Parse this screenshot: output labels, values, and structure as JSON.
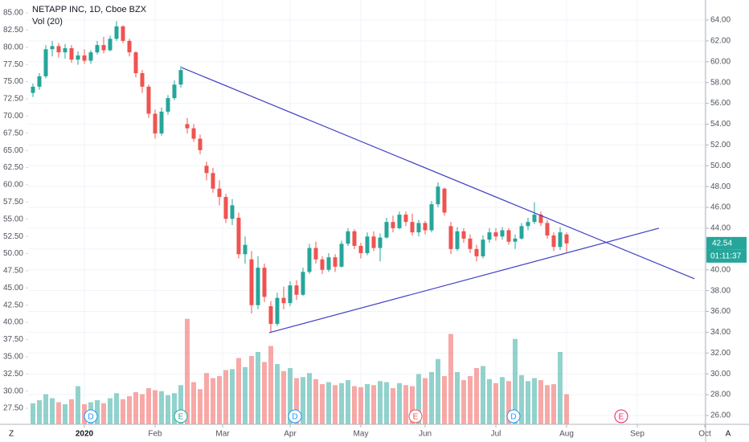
{
  "chart_data": {
    "type": "candlestick",
    "title": "NETAPP INC, 1D, Cboe BZX",
    "subtitle": "Vol (20)",
    "up_color": "#26a69a",
    "down_color": "#ef5350",
    "x": [
      -16,
      -14,
      -12,
      -10,
      -8,
      -6,
      -4,
      -2,
      0,
      2,
      4,
      6,
      8,
      10,
      12,
      14,
      16,
      18,
      20,
      22,
      24,
      26,
      28,
      30,
      32,
      34,
      36,
      38,
      40,
      42,
      44,
      46,
      48,
      50,
      52,
      54,
      56,
      58,
      60,
      62,
      64,
      66,
      68,
      70,
      72,
      74,
      76,
      78,
      80,
      82,
      84,
      86,
      88,
      90,
      92,
      94,
      96,
      98,
      100,
      102,
      104,
      106,
      108,
      110,
      112,
      114,
      116,
      118,
      120,
      122,
      124,
      126,
      128,
      130,
      132,
      134,
      136,
      138,
      140,
      142,
      144,
      146,
      148,
      150
    ],
    "open": [
      57.0,
      57.6,
      58.6,
      61.2,
      61.5,
      60.9,
      61.3,
      60.2,
      60.6,
      60.1,
      60.9,
      61.6,
      61.1,
      62.2,
      63.4,
      62.0,
      60.9,
      58.9,
      57.6,
      55.0,
      53.1,
      55.2,
      56.5,
      57.8,
      54.0,
      53.6,
      52.6,
      50.0,
      49.3,
      47.8,
      47.0,
      44.9,
      45.0,
      41.5,
      41.0,
      36.6,
      40.2,
      36.5,
      34.8,
      37.3,
      36.8,
      38.5,
      37.6,
      39.8,
      42.1,
      41.0,
      40.0,
      41.2,
      40.3,
      42.5,
      43.7,
      42.3,
      41.6,
      43.2,
      42.1,
      43.1,
      44.6,
      44.0,
      45.3,
      44.6,
      43.6,
      44.5,
      43.8,
      46.3,
      47.8,
      44.2,
      42.0,
      43.7,
      43.0,
      42.0,
      41.3,
      42.9,
      43.6,
      43.2,
      43.8,
      42.7,
      43.0,
      44.2,
      44.6,
      45.3,
      44.5,
      43.3,
      42.2,
      43.4
    ],
    "high": [
      57.9,
      58.9,
      61.6,
      62.0,
      61.8,
      61.7,
      61.6,
      61.0,
      61.2,
      61.1,
      62.0,
      62.4,
      62.5,
      63.9,
      63.5,
      62.2,
      61.0,
      59.2,
      57.8,
      55.4,
      55.6,
      56.8,
      58.2,
      59.6,
      54.6,
      54.0,
      53.0,
      50.4,
      49.8,
      48.6,
      47.3,
      46.8,
      45.5,
      43.2,
      41.8,
      41.3,
      40.6,
      37.0,
      37.8,
      38.4,
      38.9,
      39.0,
      40.2,
      42.5,
      42.7,
      41.3,
      41.6,
      41.5,
      42.8,
      44.0,
      43.9,
      42.6,
      43.6,
      43.7,
      43.5,
      45.0,
      45.2,
      45.6,
      45.6,
      45.4,
      44.8,
      44.7,
      46.6,
      48.4,
      47.9,
      44.6,
      44.1,
      44.0,
      43.4,
      42.4,
      43.3,
      44.0,
      44.0,
      44.1,
      44.0,
      43.4,
      44.5,
      45.0,
      46.5,
      45.6,
      44.8,
      43.6,
      44.1,
      43.6
    ],
    "low": [
      56.6,
      57.3,
      58.4,
      60.5,
      60.4,
      60.3,
      59.9,
      59.7,
      59.8,
      59.8,
      60.7,
      60.8,
      61.0,
      62.0,
      61.8,
      60.5,
      58.5,
      57.0,
      54.6,
      52.6,
      52.9,
      54.9,
      56.3,
      57.5,
      53.1,
      52.3,
      51.1,
      48.6,
      47.4,
      46.2,
      44.5,
      44.3,
      41.1,
      40.6,
      35.8,
      36.2,
      36.9,
      34.0,
      34.6,
      36.2,
      36.5,
      37.1,
      37.5,
      39.6,
      40.6,
      39.6,
      39.8,
      39.8,
      40.2,
      42.3,
      42.0,
      41.1,
      41.4,
      41.8,
      40.8,
      43.0,
      43.6,
      43.9,
      44.2,
      43.3,
      43.2,
      43.4,
      43.6,
      46.0,
      45.2,
      41.5,
      41.8,
      42.6,
      41.6,
      40.8,
      41.1,
      42.6,
      42.8,
      42.9,
      42.4,
      42.0,
      42.9,
      43.8,
      44.4,
      44.2,
      43.0,
      41.8,
      41.9,
      41.7
    ],
    "close": [
      57.6,
      58.6,
      61.2,
      61.5,
      60.9,
      61.3,
      60.2,
      60.6,
      60.1,
      60.9,
      61.6,
      61.1,
      62.2,
      63.4,
      62.0,
      60.9,
      58.9,
      57.6,
      55.0,
      53.1,
      55.2,
      56.5,
      57.8,
      59.2,
      53.6,
      52.6,
      51.5,
      49.3,
      47.8,
      47.0,
      44.9,
      46.2,
      41.5,
      42.4,
      36.6,
      40.2,
      37.4,
      34.8,
      37.3,
      36.8,
      38.5,
      37.6,
      39.8,
      42.1,
      41.0,
      40.0,
      41.2,
      40.3,
      42.5,
      43.7,
      42.3,
      41.6,
      43.2,
      42.1,
      43.1,
      44.6,
      44.0,
      45.3,
      44.6,
      43.6,
      44.5,
      43.8,
      46.3,
      48.0,
      45.5,
      42.0,
      43.7,
      43.0,
      42.0,
      41.3,
      42.9,
      43.6,
      43.2,
      43.8,
      42.7,
      43.0,
      44.2,
      44.6,
      45.3,
      44.5,
      43.3,
      42.2,
      43.6,
      42.54
    ],
    "volume": [
      2.1,
      2.4,
      3.0,
      2.6,
      2.2,
      2.0,
      2.5,
      3.8,
      2.0,
      2.2,
      2.4,
      2.1,
      2.6,
      3.1,
      2.5,
      2.8,
      3.2,
      3.0,
      3.6,
      3.4,
      3.3,
      2.9,
      3.1,
      3.9,
      10.5,
      4.2,
      3.5,
      5.1,
      4.6,
      4.8,
      5.4,
      5.5,
      6.6,
      5.7,
      6.8,
      7.2,
      6.2,
      7.8,
      6.0,
      5.3,
      5.6,
      4.6,
      4.7,
      5.1,
      4.5,
      4.0,
      4.2,
      3.9,
      4.1,
      4.4,
      3.8,
      3.7,
      4.0,
      3.9,
      4.3,
      4.2,
      3.6,
      4.1,
      3.9,
      3.8,
      5.0,
      4.6,
      5.2,
      6.5,
      4.8,
      9.0,
      5.2,
      4.4,
      4.8,
      5.6,
      5.8,
      4.5,
      4.1,
      4.7,
      4.3,
      8.5,
      4.9,
      4.3,
      4.6,
      4.4,
      3.9,
      4.0,
      7.2,
      3.0
    ],
    "vlim": [
      0,
      12
    ],
    "xlim": [
      -17.5,
      193.25
    ],
    "xticks": [
      {
        "value": 0,
        "label": "2020"
      },
      {
        "value": 22,
        "label": "Feb"
      },
      {
        "value": 43,
        "label": "Mar"
      },
      {
        "value": 64,
        "label": "Apr"
      },
      {
        "value": 86,
        "label": "May"
      },
      {
        "value": 106,
        "label": "Jun"
      },
      {
        "value": 128,
        "label": "Jul"
      },
      {
        "value": 150,
        "label": "Aug"
      },
      {
        "value": 172,
        "label": "Sep"
      },
      {
        "value": 193,
        "label": "Oct"
      }
    ],
    "ylim": [
      25.15,
      65.93
    ],
    "yticks": [
      {
        "value": 26,
        "label": "26.00"
      },
      {
        "value": 28,
        "label": "28.00"
      },
      {
        "value": 30,
        "label": "30.00"
      },
      {
        "value": 32,
        "label": "32.00"
      },
      {
        "value": 34,
        "label": "34.00"
      },
      {
        "value": 36,
        "label": "36.00"
      },
      {
        "value": 38,
        "label": "38.00"
      },
      {
        "value": 40,
        "label": "40.00"
      },
      {
        "value": 42,
        "label": "42.00"
      },
      {
        "value": 44,
        "label": "44.00"
      },
      {
        "value": 46,
        "label": "46.00"
      },
      {
        "value": 48,
        "label": "48.00"
      },
      {
        "value": 50,
        "label": "50.00"
      },
      {
        "value": 52,
        "label": "52.00"
      },
      {
        "value": 54,
        "label": "54.00"
      },
      {
        "value": 56,
        "label": "56.00"
      },
      {
        "value": 58,
        "label": "58.00"
      },
      {
        "value": 60,
        "label": "60.00"
      },
      {
        "value": 62,
        "label": "62.00"
      },
      {
        "value": 64,
        "label": "64.00"
      }
    ],
    "y2lim": [
      25.17,
      86.87
    ],
    "y2ticks": [
      {
        "value": 27.5,
        "label": "27.50"
      },
      {
        "value": 30,
        "label": "30.00"
      },
      {
        "value": 32.5,
        "label": "32.50"
      },
      {
        "value": 35,
        "label": "35.00"
      },
      {
        "value": 37.5,
        "label": "37.50"
      },
      {
        "value": 40,
        "label": "40.00"
      },
      {
        "value": 42.5,
        "label": "42.50"
      },
      {
        "value": 45,
        "label": "45.00"
      },
      {
        "value": 47.5,
        "label": "47.50"
      },
      {
        "value": 50,
        "label": "50.00"
      },
      {
        "value": 52.5,
        "label": "52.50"
      },
      {
        "value": 55,
        "label": "55.00"
      },
      {
        "value": 57.5,
        "label": "57.50"
      },
      {
        "value": 60,
        "label": "60.00"
      },
      {
        "value": 62.5,
        "label": "62.50"
      },
      {
        "value": 65,
        "label": "65.00"
      },
      {
        "value": 67.5,
        "label": "67.50"
      },
      {
        "value": 70,
        "label": "70.00"
      },
      {
        "value": 72.5,
        "label": "72.50"
      },
      {
        "value": 75,
        "label": "75.00"
      },
      {
        "value": 77.5,
        "label": "77.50"
      },
      {
        "value": 80,
        "label": "80.00"
      },
      {
        "value": 82.5,
        "label": "82.50"
      },
      {
        "value": 85,
        "label": "85.00"
      }
    ],
    "grid": true,
    "trendline_color": "#3f3fc4",
    "trendlines": [
      {
        "x": [
          30.25,
          189.75
        ],
        "y": [
          59.44,
          39.14
        ]
      },
      {
        "x": [
          57.5,
          178.75
        ],
        "y": [
          33.96,
          44.0
        ]
      }
    ],
    "last_price_color": "#26a69a",
    "countdown": "01:11:37",
    "events": [
      {
        "x": 2,
        "label": "D",
        "color": "#2196f3"
      },
      {
        "x": 30,
        "label": "E",
        "color": "#26a69a"
      },
      {
        "x": 65.5,
        "label": "D",
        "color": "#2196f3"
      },
      {
        "x": 103,
        "label": "E",
        "color": "#ef5350"
      },
      {
        "x": 133.5,
        "label": "D",
        "color": "#2196f3"
      },
      {
        "x": 167,
        "label": "E",
        "color": "#e91e63"
      }
    ]
  },
  "controls": [
    "Z",
    "A"
  ]
}
